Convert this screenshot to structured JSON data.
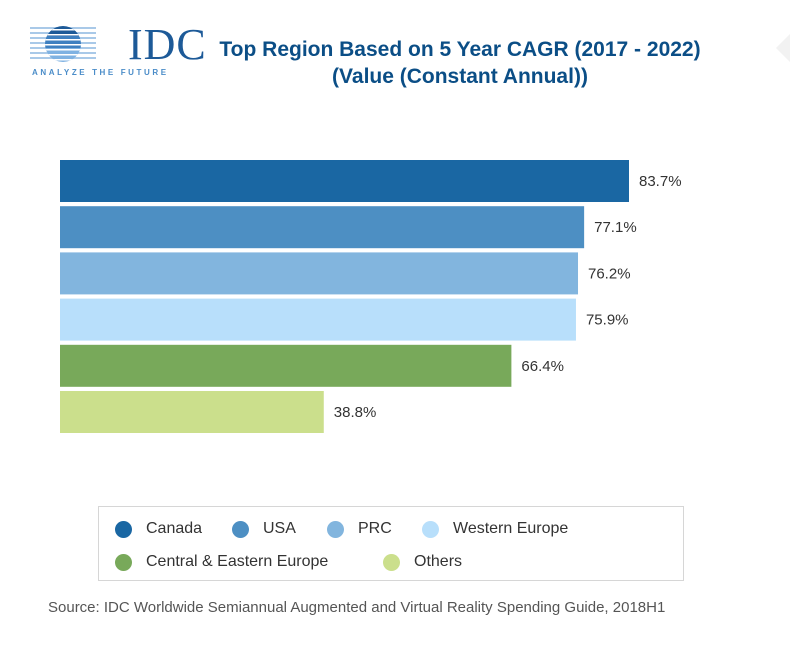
{
  "logo": {
    "name": "IDC",
    "tagline": "ANALYZE THE FUTURE"
  },
  "chart_data": {
    "type": "bar",
    "orientation": "horizontal",
    "title": "Top Region Based on 5 Year CAGR (2017 - 2022)",
    "subtitle": "(Value (Constant Annual))",
    "categories": [
      "Canada",
      "USA",
      "PRC",
      "Western Europe",
      "Central & Eastern Europe",
      "Others"
    ],
    "values": [
      83.7,
      77.1,
      76.2,
      75.9,
      66.4,
      38.8
    ],
    "data_labels": [
      "83.7%",
      "77.1%",
      "76.2%",
      "75.9%",
      "66.4%",
      "38.8%"
    ],
    "colors": [
      "#1a67a3",
      "#4d8fc3",
      "#82b5de",
      "#b8dffb",
      "#78a95a",
      "#cbdf8c"
    ],
    "unit": "%",
    "xlim": [
      0,
      100
    ],
    "xlabel": "",
    "ylabel": "",
    "grid": false,
    "axes_visible": false,
    "legend_position": "bottom",
    "source": "Source: IDC Worldwide Semiannual Augmented and Virtual Reality Spending Guide, 2018H1"
  },
  "legend": {
    "items": [
      {
        "label": "Canada",
        "color": "#1a67a3"
      },
      {
        "label": "USA",
        "color": "#4d8fc3"
      },
      {
        "label": "PRC",
        "color": "#82b5de"
      },
      {
        "label": "Western Europe",
        "color": "#b8dffb"
      },
      {
        "label": "Central & Eastern Europe",
        "color": "#78a95a"
      },
      {
        "label": "Others",
        "color": "#cbdf8c"
      }
    ]
  },
  "colors": {
    "title": "#0b4e86",
    "brand": "#1d5a98"
  }
}
